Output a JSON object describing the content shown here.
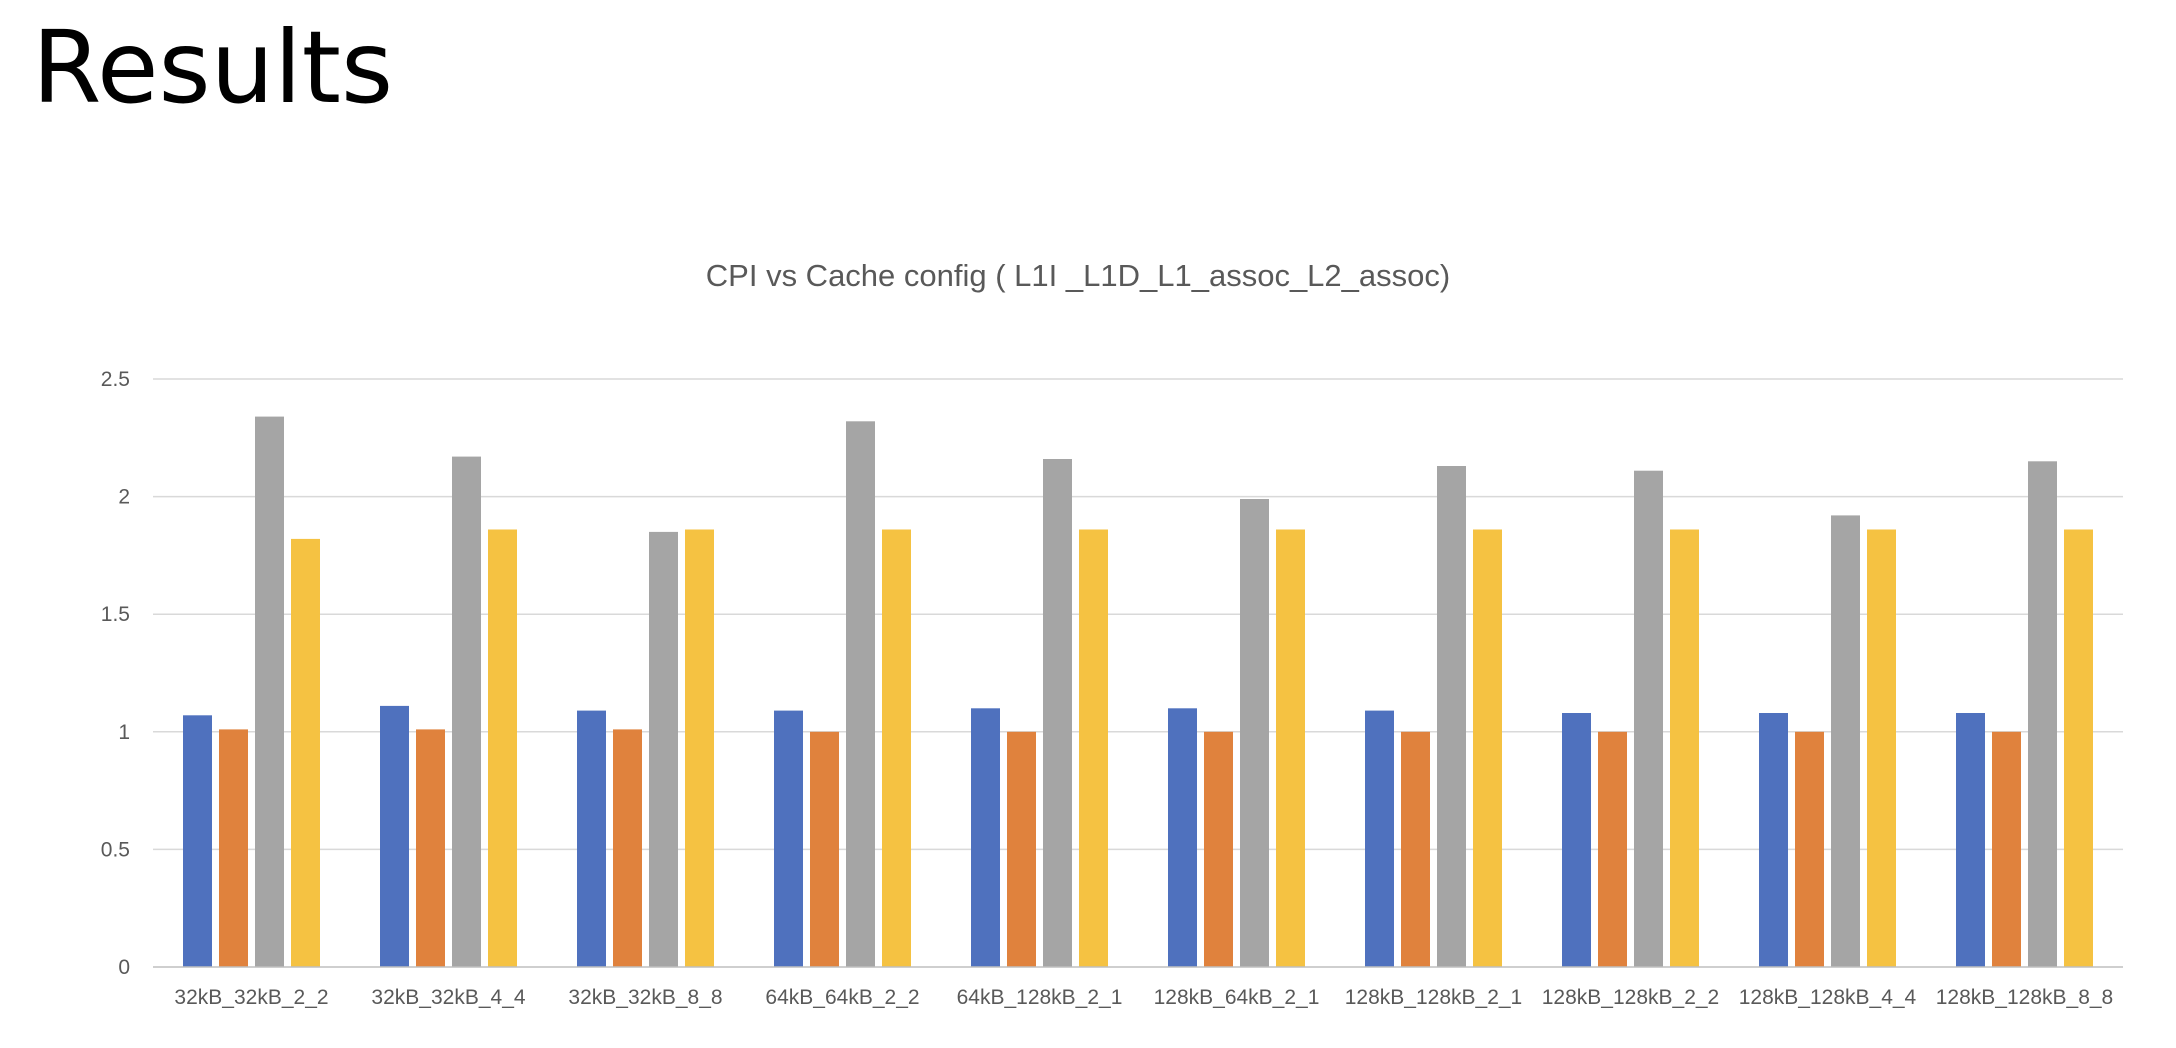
{
  "slide": {
    "title": "Results"
  },
  "chart_data": {
    "type": "bar",
    "title": "CPI vs Cache config ( L1I _L1D_L1_assoc_L2_assoc)",
    "xlabel": "",
    "ylabel": "",
    "ylim": [
      0,
      2.5
    ],
    "yticks": [
      "0",
      "0.5",
      "1",
      "1.5",
      "2",
      "2.5"
    ],
    "grid": true,
    "legend": "none",
    "categories": [
      "32kB_32kB_2_2",
      "32kB_32kB_4_4",
      "32kB_32kB_8_8",
      "64kB_64kB_2_2",
      "64kB_128kB_2_1",
      "128kB_64kB_2_1",
      "128kB_128kB_2_1",
      "128kB_128kB_2_2",
      "128kB_128kB_4_4",
      "128kB_128kB_8_8"
    ],
    "series": [
      {
        "color": "#4f71be",
        "values": [
          1.07,
          1.11,
          1.09,
          1.09,
          1.1,
          1.1,
          1.09,
          1.08,
          1.08,
          1.08
        ]
      },
      {
        "color": "#e0823d",
        "values": [
          1.01,
          1.01,
          1.01,
          1.0,
          1.0,
          1.0,
          1.0,
          1.0,
          1.0,
          1.0
        ]
      },
      {
        "color": "#a5a5a5",
        "values": [
          2.34,
          2.17,
          1.85,
          2.32,
          2.16,
          1.99,
          2.13,
          2.11,
          1.92,
          2.15
        ]
      },
      {
        "color": "#f5c242",
        "values": [
          1.82,
          1.86,
          1.86,
          1.86,
          1.86,
          1.86,
          1.86,
          1.86,
          1.86,
          1.86
        ]
      }
    ],
    "colors": {
      "grid": "#d9d9d9",
      "axis": "#bfbfbf",
      "text": "#595959"
    }
  }
}
